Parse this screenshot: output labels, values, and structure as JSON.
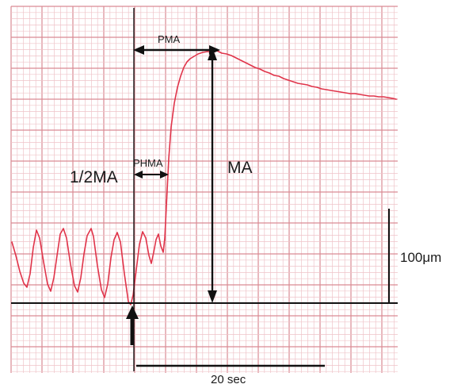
{
  "labels": {
    "pma": "PMA",
    "phma": "PHMA",
    "half_ma": "1/2MA",
    "ma": "MA",
    "amplitude_scale": "100μm",
    "time_scale": "20 sec"
  },
  "colors": {
    "grid_line": "#d98a93",
    "grid_line_minor": "#efc4c9",
    "trace": "#e0344a",
    "annotation": "#111111"
  },
  "icons": {
    "stimulus_marker": "arrow-up-icon"
  }
}
